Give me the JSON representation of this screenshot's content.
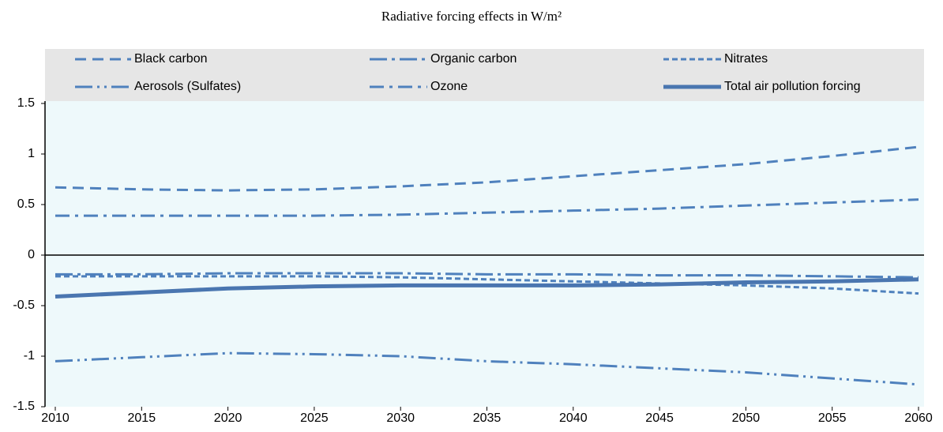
{
  "chart_data": {
    "type": "line",
    "title": "Radiative forcing effects in W/m²",
    "x": [
      2010,
      2015,
      2020,
      2025,
      2030,
      2035,
      2040,
      2045,
      2050,
      2055,
      2060
    ],
    "xlim": [
      2010,
      2060
    ],
    "xticks": [
      2010,
      2015,
      2020,
      2025,
      2030,
      2035,
      2040,
      2045,
      2050,
      2055,
      2060
    ],
    "ylim": [
      -1.5,
      1.5
    ],
    "yticks": [
      1.5,
      1,
      0.5,
      0,
      -0.5,
      -1,
      -1.5
    ],
    "grid": false,
    "series": [
      {
        "name": "Black carbon",
        "color": "#4f81bd",
        "dash": "14 8",
        "width": 3,
        "values": [
          0.67,
          0.65,
          0.64,
          0.65,
          0.68,
          0.72,
          0.78,
          0.84,
          0.9,
          0.98,
          1.07
        ]
      },
      {
        "name": "Organic carbon",
        "color": "#4f81bd",
        "dash": "22 6 4 6",
        "width": 3,
        "values": [
          -0.19,
          -0.19,
          -0.18,
          -0.18,
          -0.18,
          -0.19,
          -0.19,
          -0.2,
          -0.2,
          -0.21,
          -0.22
        ]
      },
      {
        "name": "Nitrates",
        "color": "#4f81bd",
        "dash": "7 4",
        "width": 3,
        "values": [
          -0.21,
          -0.21,
          -0.21,
          -0.21,
          -0.22,
          -0.24,
          -0.26,
          -0.28,
          -0.3,
          -0.33,
          -0.38
        ]
      },
      {
        "name": "Aerosols (Sulfates)",
        "color": "#4f81bd",
        "dash": "22 6 3 6 3 6",
        "width": 3,
        "values": [
          -1.05,
          -1.01,
          -0.97,
          -0.98,
          -1.0,
          -1.05,
          -1.08,
          -1.12,
          -1.16,
          -1.22,
          -1.28
        ]
      },
      {
        "name": "Ozone",
        "color": "#4f81bd",
        "dash": "18 7 4 7",
        "width": 3,
        "values": [
          0.39,
          0.39,
          0.39,
          0.39,
          0.4,
          0.42,
          0.44,
          0.46,
          0.49,
          0.52,
          0.55
        ]
      },
      {
        "name": "Total air pollution forcing",
        "color": "#4a76b0",
        "dash": "none",
        "width": 5,
        "values": [
          -0.41,
          -0.37,
          -0.33,
          -0.31,
          -0.3,
          -0.3,
          -0.3,
          -0.29,
          -0.27,
          -0.26,
          -0.24
        ]
      }
    ]
  }
}
